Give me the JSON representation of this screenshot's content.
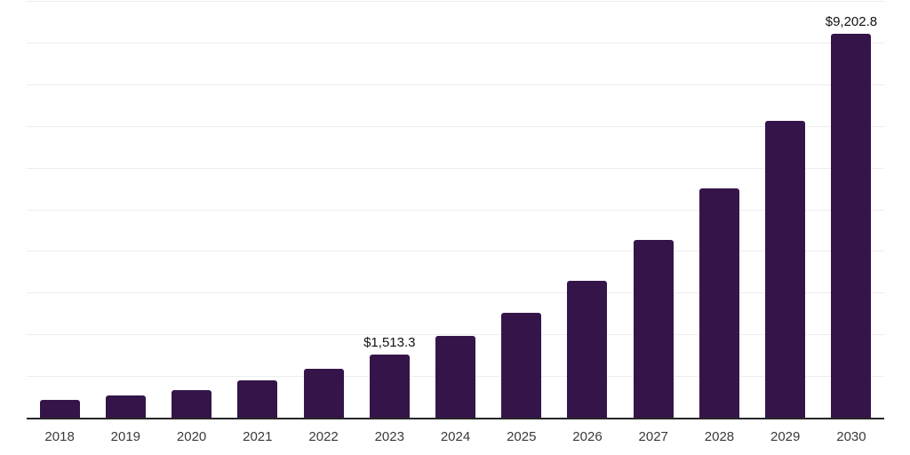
{
  "chart_data": {
    "type": "bar",
    "title": "",
    "xlabel": "",
    "ylabel": "",
    "categories": [
      "2018",
      "2019",
      "2020",
      "2021",
      "2022",
      "2023",
      "2024",
      "2025",
      "2026",
      "2027",
      "2028",
      "2029",
      "2030"
    ],
    "values": [
      420,
      535,
      670,
      890,
      1165,
      1513.3,
      1960,
      2515,
      3285,
      4260,
      5500,
      7120,
      9202.8
    ],
    "data_labels": {
      "2023": "$1,513.3",
      "2030": "$9,202.8"
    },
    "ylim": [
      0,
      10000
    ],
    "gridline_step": 1000,
    "grid": "horizontal-only",
    "y_tick_labels_visible": false,
    "legend": "none",
    "colors": {
      "bar": "#351549",
      "gridline": "#ededed",
      "axis_line": "#262626",
      "x_tick_label": "#3a3a3a",
      "data_label": "#111111",
      "background": "#ffffff"
    }
  }
}
